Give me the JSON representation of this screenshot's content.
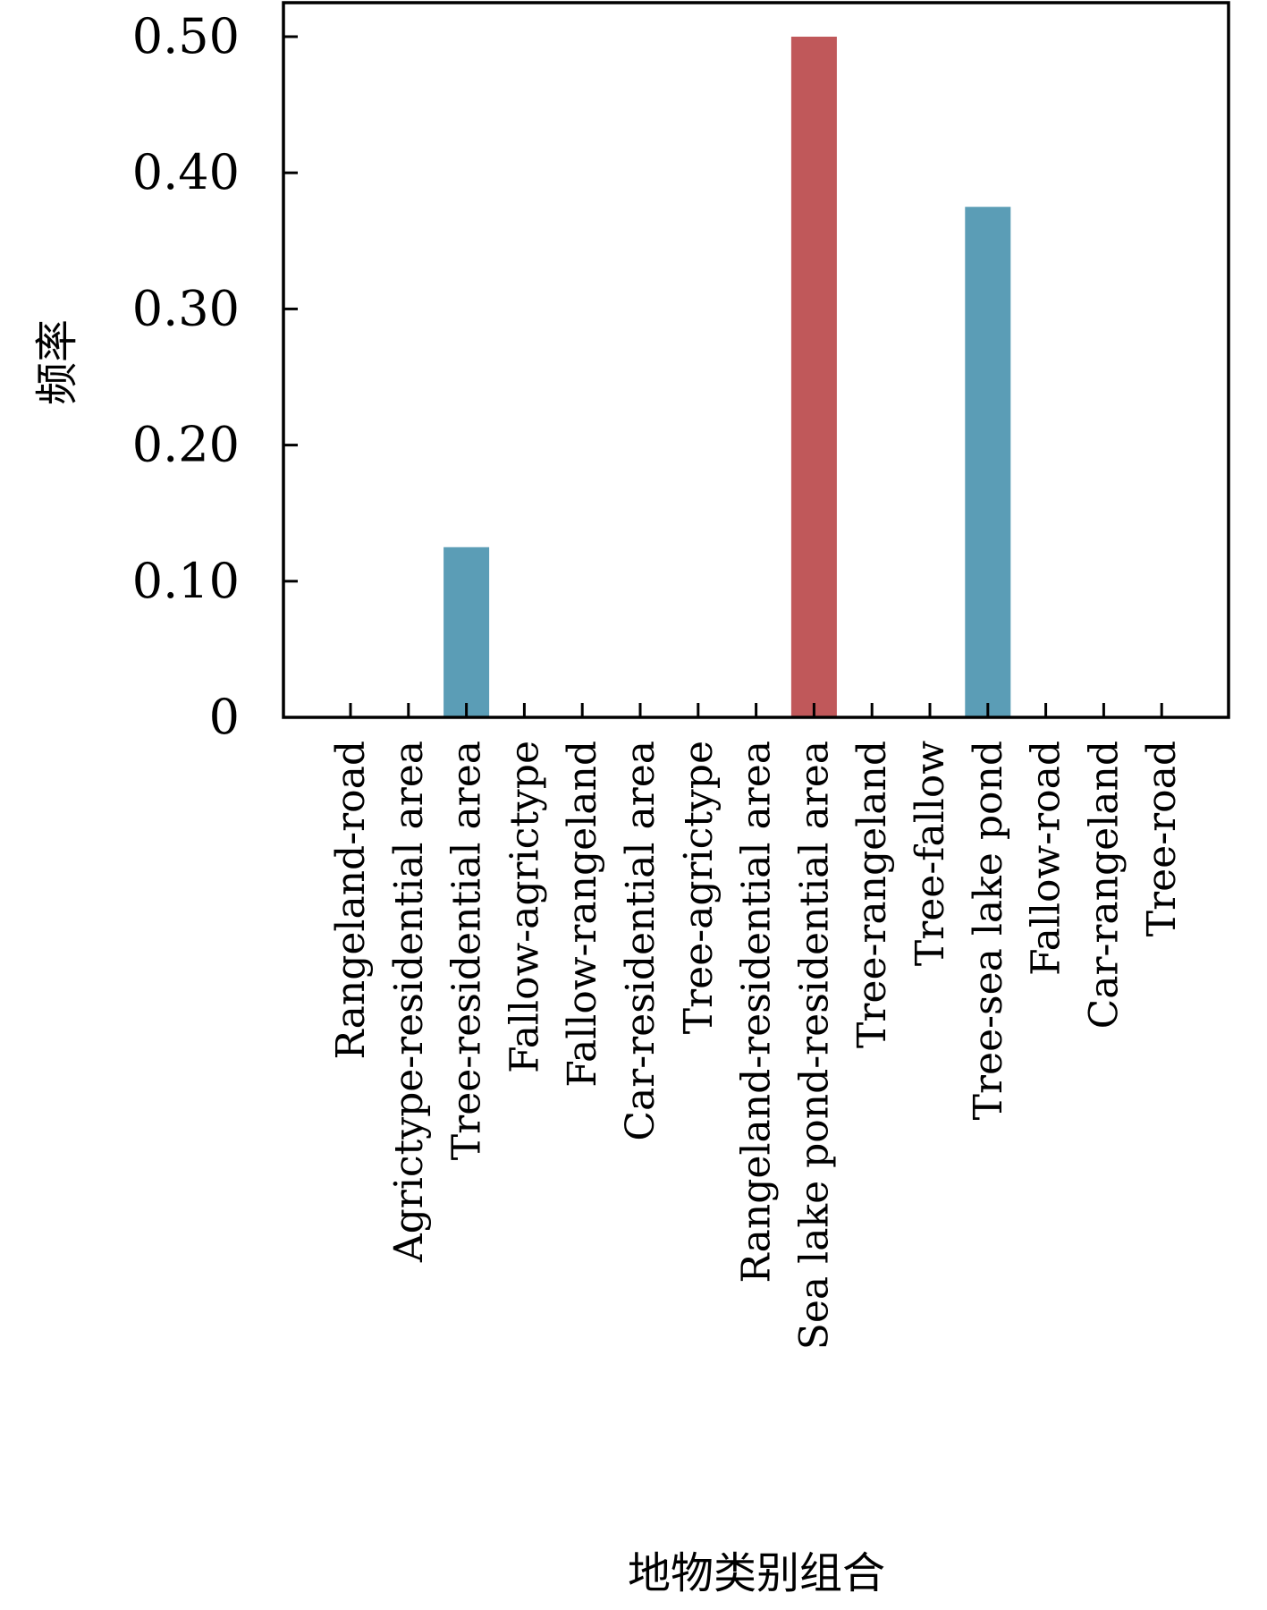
{
  "chart_data": {
    "type": "bar",
    "title": "",
    "xlabel": "地物类别组合",
    "ylabel": "频率",
    "ylim": [
      0,
      0.5
    ],
    "yticks": [
      0,
      0.1,
      0.2,
      0.3,
      0.4,
      0.5
    ],
    "ytick_labels": [
      "0",
      "0.10",
      "0.20",
      "0.30",
      "0.40",
      "0.50"
    ],
    "grid": false,
    "categories": [
      "Rangeland-road",
      "Agrictype-residential area",
      "Tree-residential area",
      "Fallow-agrictype",
      "Fallow-rangeland",
      "Car-residential area",
      "Tree-agrictype",
      "Rangeland-residential area",
      "Sea lake pond-residential area",
      "Tree-rangeland",
      "Tree-fallow",
      "Tree-sea lake pond",
      "Fallow-road",
      "Car-rangeland",
      "Tree-road"
    ],
    "values": [
      0,
      0,
      0.125,
      0,
      0,
      0,
      0,
      0,
      0.5,
      0,
      0,
      0.375,
      0,
      0,
      0
    ],
    "highlight_index": 8,
    "colors": {
      "default": "#5b9db6",
      "highlight": "#c0585a",
      "axis": "#000000"
    }
  }
}
